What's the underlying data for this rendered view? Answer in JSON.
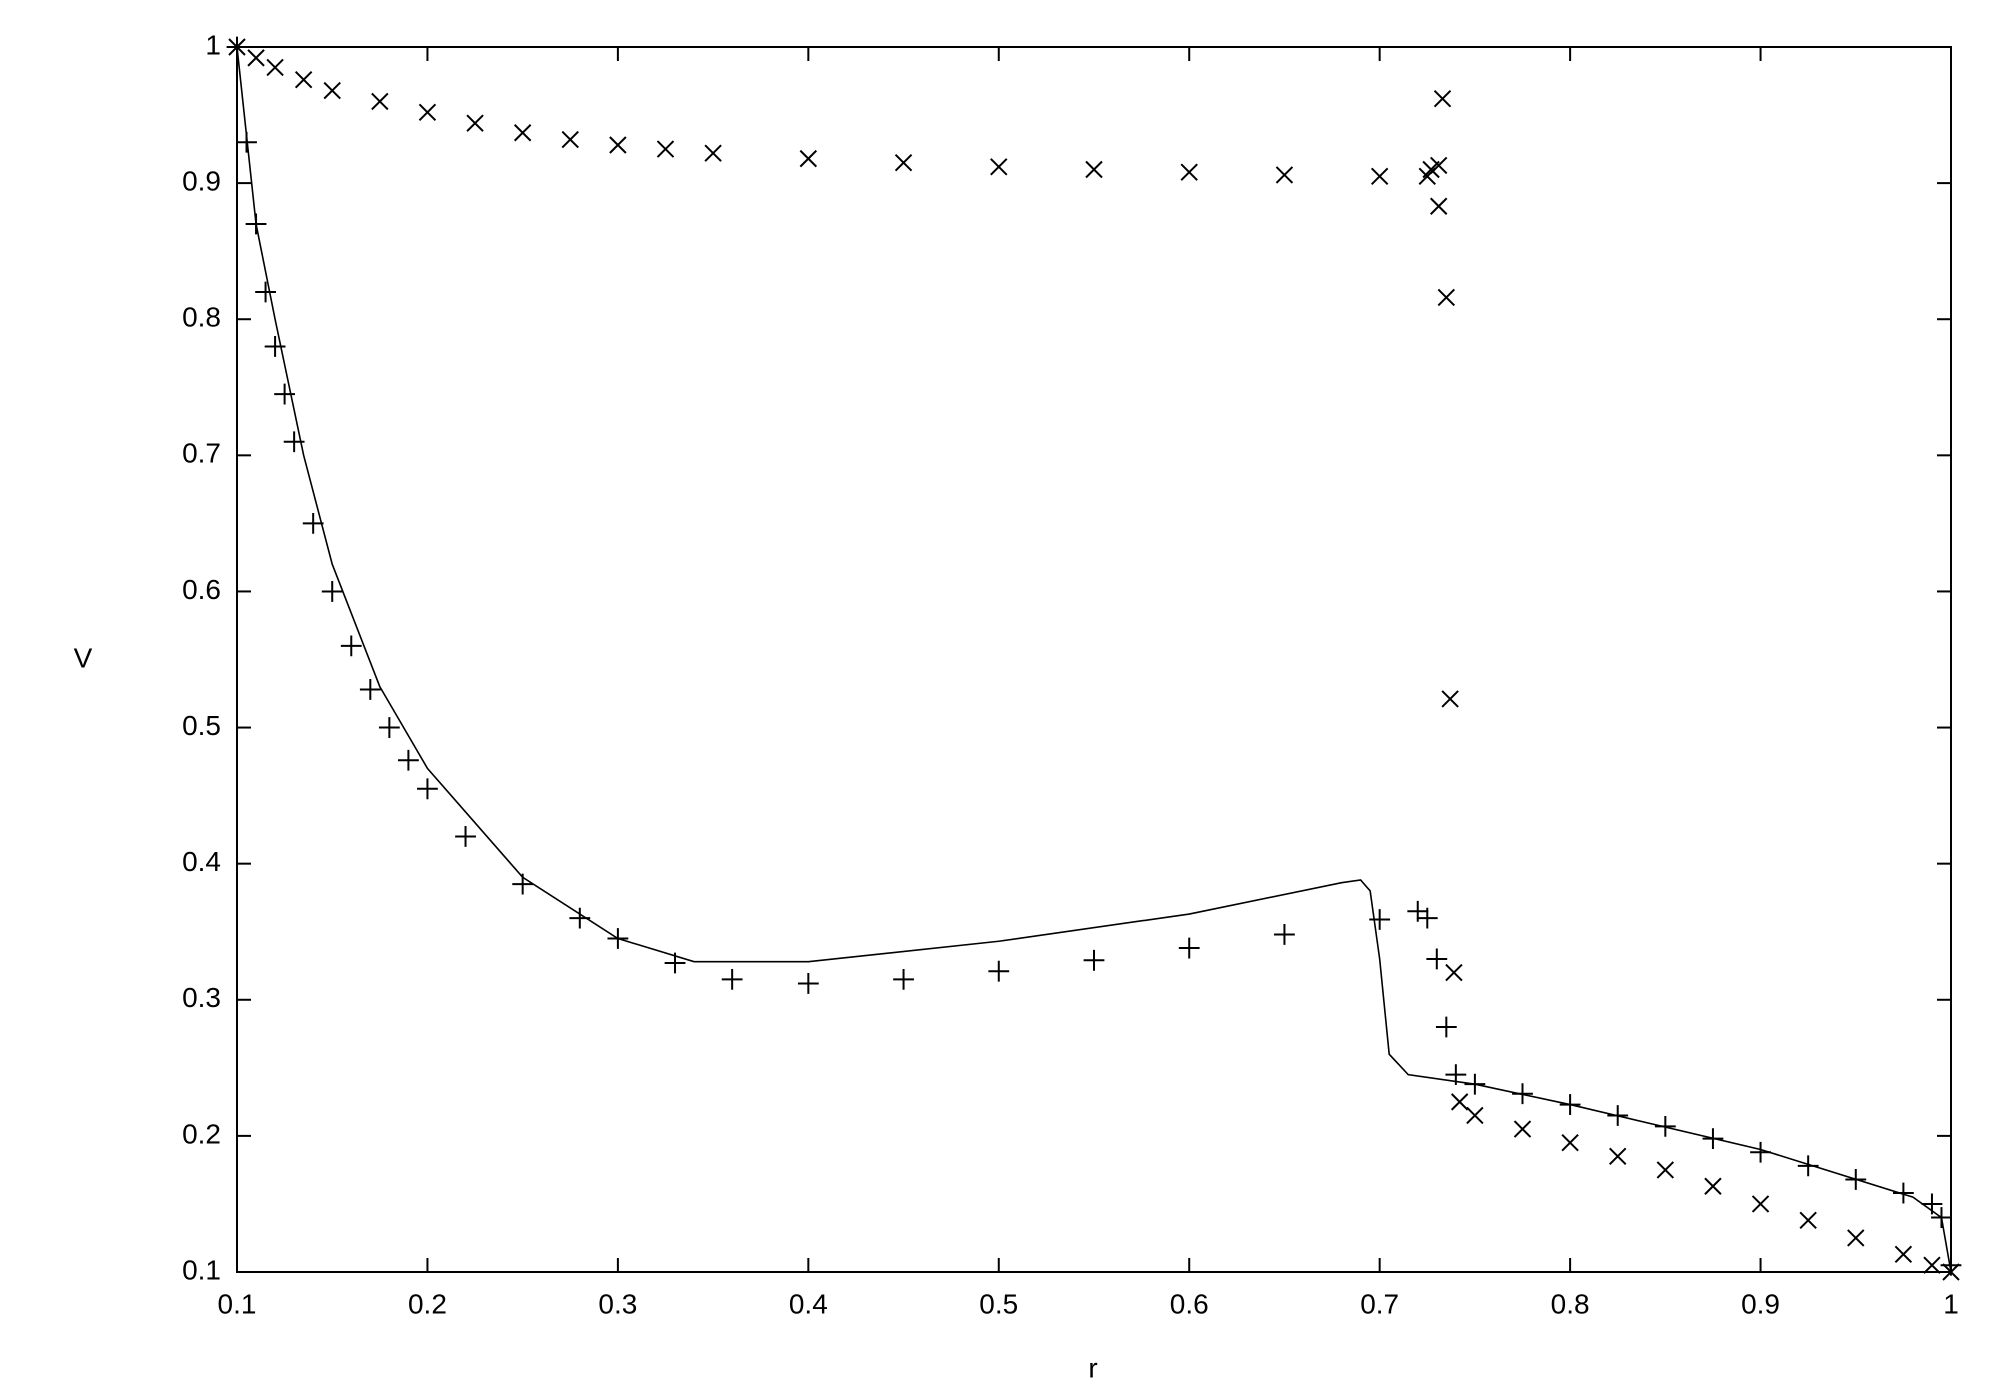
{
  "chart_data": {
    "type": "scatter",
    "xlabel": "r",
    "ylabel": "V",
    "xlim": [
      0.1,
      1
    ],
    "ylim": [
      0.1,
      1
    ],
    "xticks": [
      0.1,
      0.2,
      0.3,
      0.4,
      0.5,
      0.6,
      0.7,
      0.8,
      0.9,
      1
    ],
    "yticks": [
      0.1,
      0.2,
      0.3,
      0.4,
      0.5,
      0.6,
      0.7,
      0.8,
      0.9,
      1
    ],
    "grid": false,
    "series": [
      {
        "color": "#000000",
        "mode": "markers",
        "marker": "x",
        "x": [
          0.1,
          0.11,
          0.12,
          0.135,
          0.15,
          0.175,
          0.2,
          0.225,
          0.25,
          0.275,
          0.3,
          0.325,
          0.35,
          0.4,
          0.45,
          0.5,
          0.55,
          0.6,
          0.65,
          0.7,
          0.725,
          0.727,
          0.731,
          0.733,
          0.731,
          0.735,
          0.737,
          0.739,
          0.742,
          0.75,
          0.775,
          0.8,
          0.825,
          0.85,
          0.875,
          0.9,
          0.925,
          0.95,
          0.975,
          0.99,
          1.0
        ],
        "values": [
          1.0,
          0.992,
          0.985,
          0.976,
          0.968,
          0.96,
          0.952,
          0.944,
          0.937,
          0.932,
          0.928,
          0.925,
          0.922,
          0.918,
          0.915,
          0.912,
          0.91,
          0.908,
          0.906,
          0.905,
          0.905,
          0.91,
          0.913,
          0.962,
          0.883,
          0.816,
          0.521,
          0.32,
          0.225,
          0.215,
          0.205,
          0.195,
          0.185,
          0.175,
          0.163,
          0.15,
          0.138,
          0.125,
          0.113,
          0.105,
          0.1
        ]
      },
      {
        "color": "#000000",
        "mode": "markers",
        "marker": "+",
        "x": [
          0.1,
          0.105,
          0.11,
          0.115,
          0.12,
          0.125,
          0.13,
          0.14,
          0.15,
          0.16,
          0.17,
          0.18,
          0.19,
          0.2,
          0.22,
          0.25,
          0.28,
          0.3,
          0.33,
          0.36,
          0.4,
          0.45,
          0.5,
          0.55,
          0.6,
          0.65,
          0.7,
          0.72,
          0.725,
          0.73,
          0.735,
          0.74,
          0.75,
          0.775,
          0.8,
          0.825,
          0.85,
          0.875,
          0.9,
          0.925,
          0.95,
          0.975,
          0.99,
          0.995,
          1.0
        ],
        "values": [
          1.0,
          0.93,
          0.87,
          0.82,
          0.78,
          0.745,
          0.71,
          0.65,
          0.6,
          0.56,
          0.528,
          0.5,
          0.476,
          0.455,
          0.42,
          0.385,
          0.36,
          0.345,
          0.327,
          0.315,
          0.312,
          0.315,
          0.321,
          0.329,
          0.338,
          0.348,
          0.359,
          0.365,
          0.36,
          0.33,
          0.28,
          0.245,
          0.238,
          0.231,
          0.223,
          0.215,
          0.207,
          0.198,
          0.188,
          0.178,
          0.168,
          0.158,
          0.15,
          0.14,
          0.105
        ]
      },
      {
        "color": "#000000",
        "mode": "lines",
        "x": [
          0.1,
          0.11,
          0.12,
          0.135,
          0.15,
          0.175,
          0.2,
          0.25,
          0.3,
          0.34,
          0.4,
          0.5,
          0.6,
          0.68,
          0.69,
          0.695,
          0.7,
          0.705,
          0.715,
          0.75,
          0.8,
          0.9,
          0.98,
          0.995,
          1.0
        ],
        "values": [
          1.0,
          0.87,
          0.8,
          0.7,
          0.62,
          0.53,
          0.47,
          0.39,
          0.345,
          0.328,
          0.328,
          0.343,
          0.363,
          0.386,
          0.388,
          0.38,
          0.33,
          0.26,
          0.245,
          0.238,
          0.223,
          0.19,
          0.155,
          0.14,
          0.1
        ]
      }
    ]
  }
}
